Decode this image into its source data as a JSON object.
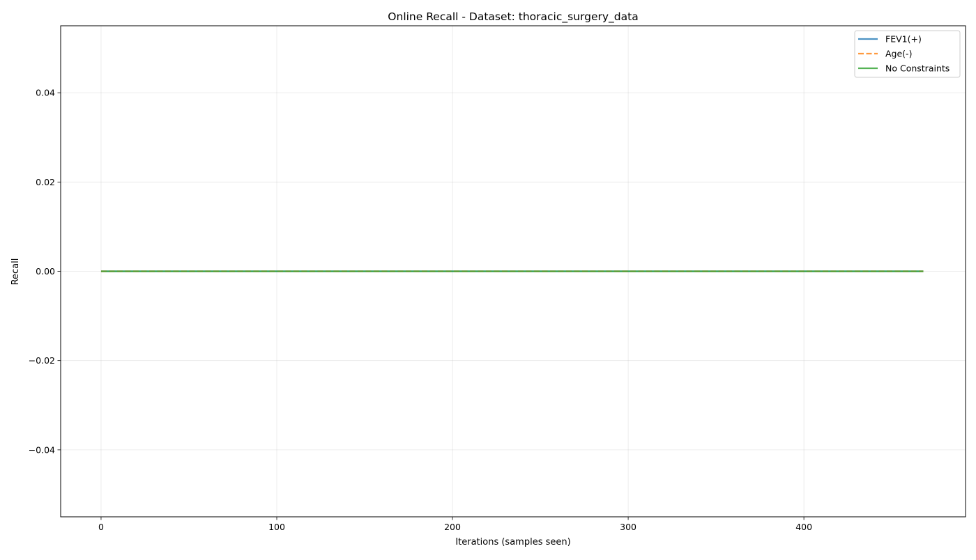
{
  "chart_data": {
    "type": "line",
    "title": "Online Recall - Dataset: thoracic_surgery_data",
    "xlabel": "Iterations (samples seen)",
    "ylabel": "Recall",
    "xlim": [
      -23,
      492
    ],
    "ylim": [
      -0.055,
      0.055
    ],
    "xticks": [
      0,
      100,
      200,
      300,
      400
    ],
    "xtick_labels": [
      "0",
      "100",
      "200",
      "300",
      "400"
    ],
    "yticks": [
      -0.04,
      -0.02,
      0.0,
      0.02,
      0.04
    ],
    "ytick_labels": [
      "−0.04",
      "−0.02",
      "0.00",
      "0.02",
      "0.04"
    ],
    "grid": true,
    "legend_position": "top-right",
    "series": [
      {
        "name": "FEV1(+)",
        "color": "#1f77b4",
        "style": "solid",
        "x": [
          0,
          468
        ],
        "y": [
          0.0,
          0.0
        ]
      },
      {
        "name": "Age(-)",
        "color": "#ff7f0e",
        "style": "dashed",
        "x": [
          0,
          468
        ],
        "y": [
          0.0,
          0.0
        ]
      },
      {
        "name": "No Constraints",
        "color": "#2ca02c",
        "style": "solid",
        "x": [
          0,
          468
        ],
        "y": [
          0.0,
          0.0
        ]
      }
    ]
  }
}
